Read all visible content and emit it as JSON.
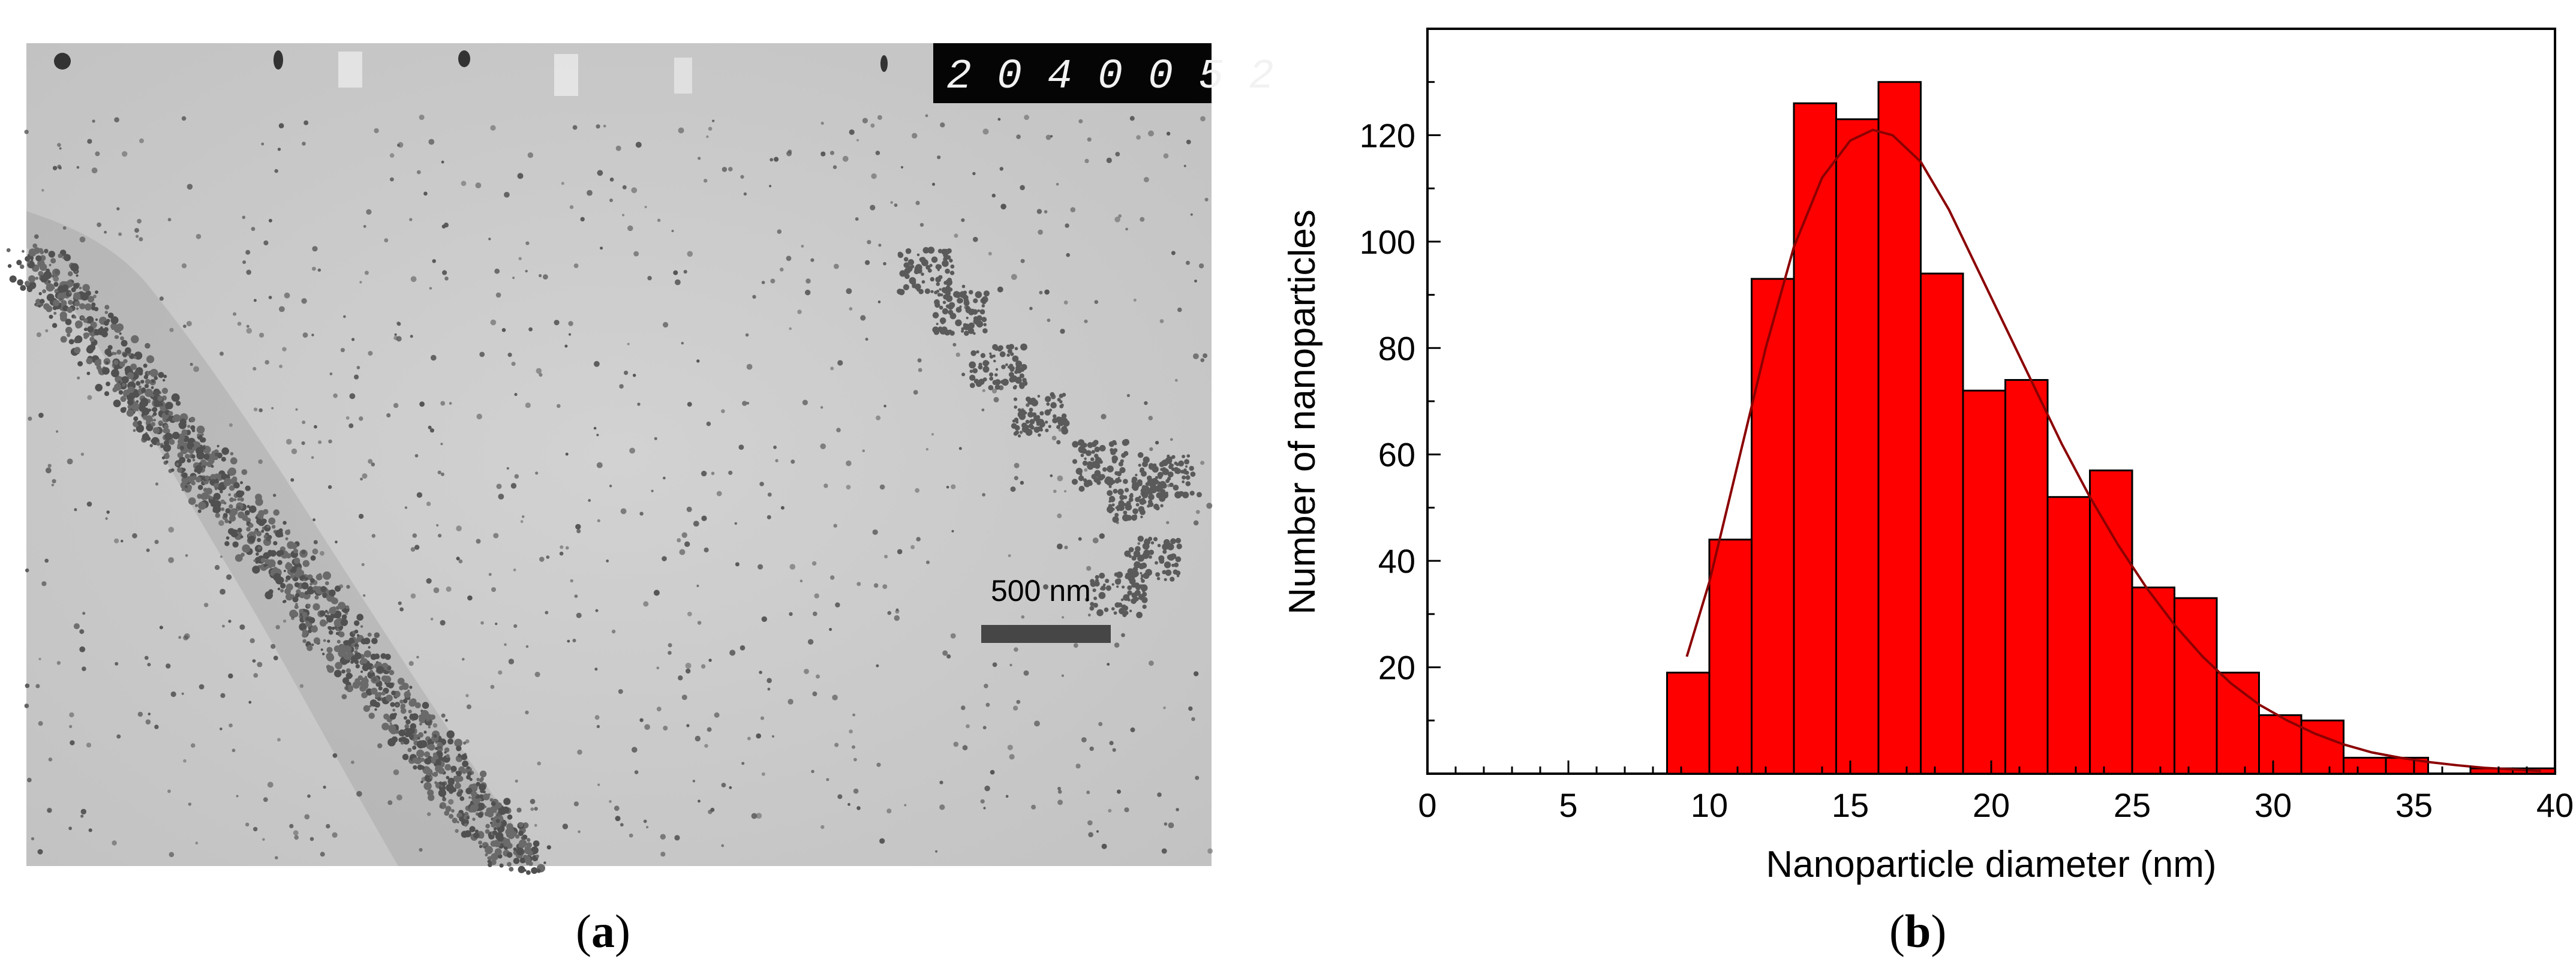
{
  "panel_a": {
    "stamp_text": "2 0 4 0 0 5 2",
    "scale_bar_label": "500 nm",
    "caption_open": "(",
    "caption_letter": "a",
    "caption_close": ")"
  },
  "panel_b": {
    "caption_open": "(",
    "caption_letter": "b",
    "caption_close": ")"
  },
  "chart_data": {
    "type": "bar",
    "title": "",
    "xlabel": "Nanoparticle diameter (nm)",
    "ylabel": "Number of nanoparticles",
    "xlim": [
      0,
      40
    ],
    "ylim": [
      0,
      140
    ],
    "x_ticks": [
      0,
      5,
      10,
      15,
      20,
      25,
      30,
      35,
      40
    ],
    "y_ticks": [
      20,
      40,
      60,
      80,
      100,
      120
    ],
    "bin_width": 1.5,
    "bar_color": "#ff0000",
    "bar_edge_color": "#000000",
    "curve_color": "#8b0000",
    "grid": false,
    "bins": [
      {
        "x": 9.25,
        "value": 19
      },
      {
        "x": 10.75,
        "value": 44
      },
      {
        "x": 12.25,
        "value": 93
      },
      {
        "x": 13.75,
        "value": 126
      },
      {
        "x": 15.25,
        "value": 123
      },
      {
        "x": 16.75,
        "value": 130
      },
      {
        "x": 18.25,
        "value": 94
      },
      {
        "x": 19.75,
        "value": 72
      },
      {
        "x": 21.25,
        "value": 74
      },
      {
        "x": 22.75,
        "value": 52
      },
      {
        "x": 24.25,
        "value": 57
      },
      {
        "x": 25.75,
        "value": 35
      },
      {
        "x": 27.25,
        "value": 33
      },
      {
        "x": 28.75,
        "value": 19
      },
      {
        "x": 30.25,
        "value": 11
      },
      {
        "x": 31.75,
        "value": 10
      },
      {
        "x": 33.25,
        "value": 3
      },
      {
        "x": 34.75,
        "value": 3
      },
      {
        "x": 36.25,
        "value": 0
      },
      {
        "x": 37.75,
        "value": 1
      },
      {
        "x": 39.25,
        "value": 1
      }
    ],
    "fit_curve": [
      [
        9.2,
        22
      ],
      [
        10,
        36
      ],
      [
        11,
        58
      ],
      [
        12,
        80
      ],
      [
        13,
        99
      ],
      [
        14,
        112
      ],
      [
        15,
        119
      ],
      [
        15.8,
        121
      ],
      [
        16.5,
        120
      ],
      [
        17.5,
        115
      ],
      [
        18.5,
        106
      ],
      [
        19.5,
        95
      ],
      [
        20.5,
        84
      ],
      [
        21.5,
        73
      ],
      [
        22.5,
        62
      ],
      [
        23.5,
        52
      ],
      [
        24.5,
        43
      ],
      [
        25.5,
        35
      ],
      [
        26.5,
        28
      ],
      [
        27.5,
        22
      ],
      [
        28.5,
        17
      ],
      [
        29.5,
        13
      ],
      [
        30.5,
        10
      ],
      [
        31.5,
        7.5
      ],
      [
        32.5,
        5.5
      ],
      [
        33.5,
        4
      ],
      [
        34.5,
        3
      ],
      [
        35.5,
        2.2
      ],
      [
        36.5,
        1.6
      ],
      [
        37.5,
        1.1
      ],
      [
        38.5,
        0.8
      ],
      [
        39.5,
        0.5
      ]
    ]
  }
}
